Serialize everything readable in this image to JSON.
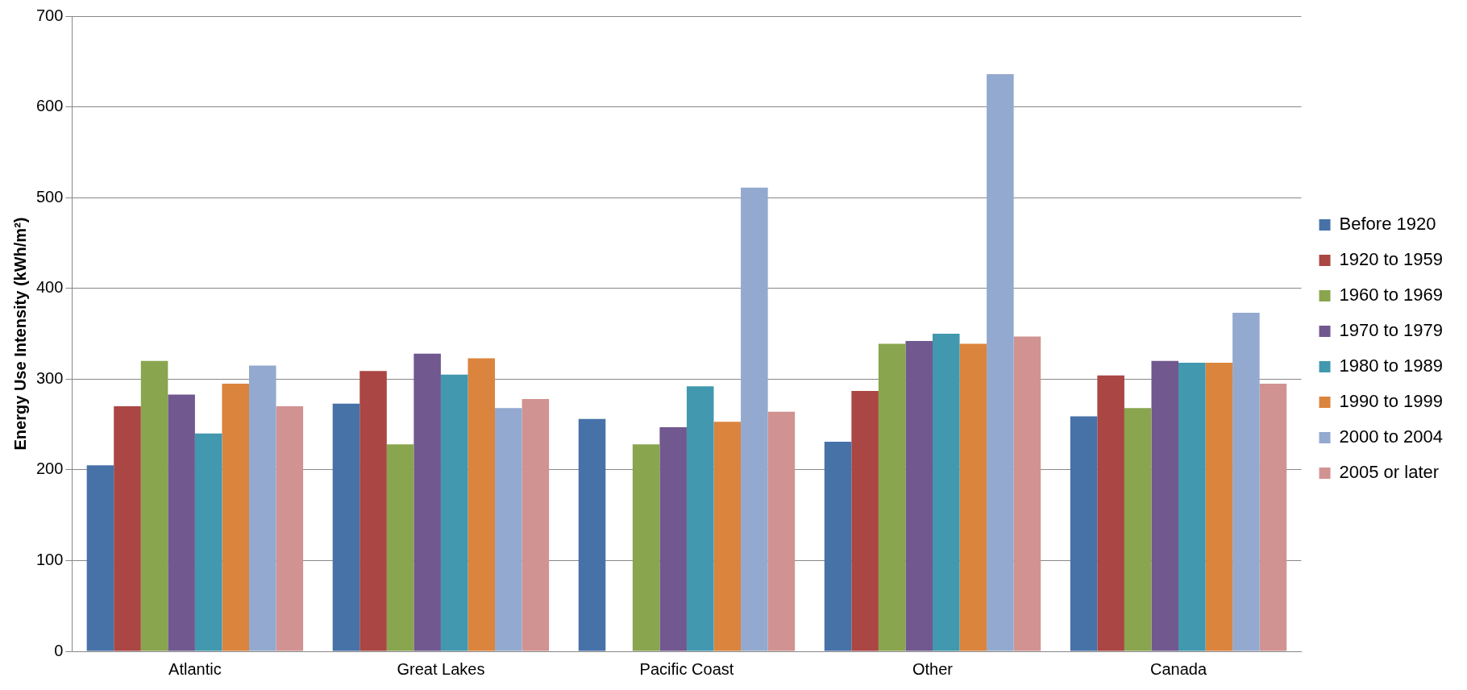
{
  "chart_data": {
    "type": "bar",
    "ylabel": "Energy Use Intensity (kWh/m²)",
    "categories": [
      "Atlantic",
      "Great Lakes",
      "Pacific Coast",
      "Other",
      "Canada"
    ],
    "series": [
      {
        "name": "Before 1920",
        "color": "#4672a8",
        "values": [
          205,
          273,
          256,
          231,
          259
        ]
      },
      {
        "name": "1920 to 1959",
        "color": "#aa4643",
        "values": [
          270,
          309,
          null,
          287,
          304
        ]
      },
      {
        "name": "1960 to 1969",
        "color": "#89a54e",
        "values": [
          320,
          228,
          228,
          339,
          268
        ]
      },
      {
        "name": "1970 to 1979",
        "color": "#71588f",
        "values": [
          283,
          328,
          247,
          342,
          320
        ]
      },
      {
        "name": "1980 to 1989",
        "color": "#4198af",
        "values": [
          240,
          305,
          292,
          350,
          318
        ]
      },
      {
        "name": "1990 to 1999",
        "color": "#db843d",
        "values": [
          295,
          323,
          253,
          339,
          318
        ]
      },
      {
        "name": "2000 to 2004",
        "color": "#93a9cf",
        "values": [
          315,
          268,
          511,
          636,
          373
        ]
      },
      {
        "name": "2005 or later",
        "color": "#d19392",
        "values": [
          270,
          278,
          264,
          347,
          295
        ]
      }
    ],
    "ylim": [
      0,
      700
    ],
    "yticks": [
      0,
      100,
      200,
      300,
      400,
      500,
      600,
      700
    ],
    "grid": "y",
    "legend": "right"
  }
}
